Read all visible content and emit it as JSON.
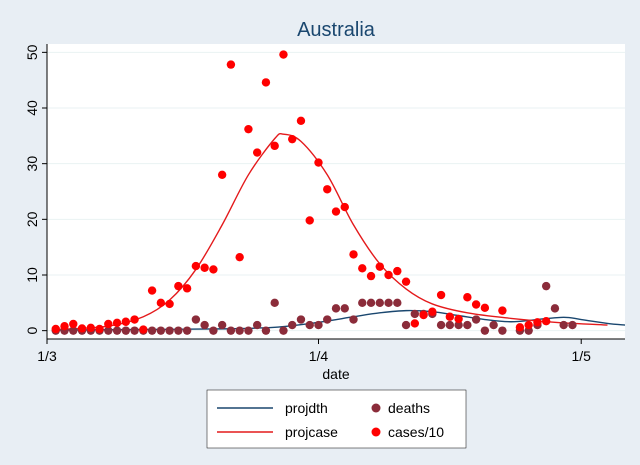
{
  "chart_data": {
    "type": "scatter",
    "title": "Australia",
    "xlabel": "date",
    "ylabel": "",
    "x_type": "date",
    "xlim": [
      "2020-03-01",
      "2020-05-06"
    ],
    "xticks": [
      {
        "value": "2020-03-01",
        "label": "1/3"
      },
      {
        "value": "2020-04-01",
        "label": "1/4"
      },
      {
        "value": "2020-05-01",
        "label": "1/5"
      }
    ],
    "ylim": [
      -1.5,
      51.5
    ],
    "yticks": [
      0,
      10,
      20,
      30,
      40,
      50
    ],
    "grid": "horizontal",
    "legend_position": "bottom",
    "series": [
      {
        "name": "projdth",
        "kind": "line",
        "color": "#1a476f",
        "points": [
          [
            "2020-03-02",
            0.1
          ],
          [
            "2020-03-10",
            0.2
          ],
          [
            "2020-03-20",
            0.3
          ],
          [
            "2020-03-27",
            0.6
          ],
          [
            "2020-04-01",
            1.5
          ],
          [
            "2020-04-05",
            2.5
          ],
          [
            "2020-04-08",
            3.2
          ],
          [
            "2020-04-11",
            3.6
          ],
          [
            "2020-04-14",
            3.4
          ],
          [
            "2020-04-17",
            2.7
          ],
          [
            "2020-04-20",
            2.0
          ],
          [
            "2020-04-23",
            1.6
          ],
          [
            "2020-04-26",
            2.0
          ],
          [
            "2020-04-29",
            2.4
          ],
          [
            "2020-05-01",
            2.0
          ],
          [
            "2020-05-04",
            1.3
          ],
          [
            "2020-05-06",
            1.0
          ]
        ]
      },
      {
        "name": "projcase",
        "kind": "line",
        "color": "#e41a1c",
        "points": [
          [
            "2020-03-02",
            0.2
          ],
          [
            "2020-03-08",
            0.8
          ],
          [
            "2020-03-12",
            2.5
          ],
          [
            "2020-03-15",
            5.5
          ],
          [
            "2020-03-18",
            11.0
          ],
          [
            "2020-03-21",
            19.0
          ],
          [
            "2020-03-24",
            28.0
          ],
          [
            "2020-03-27",
            34.5
          ],
          [
            "2020-03-28",
            35.3
          ],
          [
            "2020-03-30",
            34.0
          ],
          [
            "2020-04-02",
            28.0
          ],
          [
            "2020-04-05",
            19.0
          ],
          [
            "2020-04-08",
            12.0
          ],
          [
            "2020-04-11",
            7.5
          ],
          [
            "2020-04-14",
            4.8
          ],
          [
            "2020-04-18",
            3.2
          ],
          [
            "2020-04-23",
            2.2
          ],
          [
            "2020-04-28",
            1.5
          ],
          [
            "2020-05-04",
            1.0
          ]
        ]
      },
      {
        "name": "deaths",
        "kind": "scatter",
        "color": "#8b2c3a",
        "points": [
          [
            "2020-03-02",
            0
          ],
          [
            "2020-03-03",
            0
          ],
          [
            "2020-03-04",
            0
          ],
          [
            "2020-03-05",
            0
          ],
          [
            "2020-03-06",
            0
          ],
          [
            "2020-03-07",
            0
          ],
          [
            "2020-03-08",
            0
          ],
          [
            "2020-03-09",
            0
          ],
          [
            "2020-03-10",
            0
          ],
          [
            "2020-03-11",
            0
          ],
          [
            "2020-03-12",
            0
          ],
          [
            "2020-03-13",
            0
          ],
          [
            "2020-03-14",
            0
          ],
          [
            "2020-03-15",
            0
          ],
          [
            "2020-03-16",
            0
          ],
          [
            "2020-03-17",
            0
          ],
          [
            "2020-03-18",
            2
          ],
          [
            "2020-03-19",
            1
          ],
          [
            "2020-03-20",
            0
          ],
          [
            "2020-03-21",
            1
          ],
          [
            "2020-03-22",
            0
          ],
          [
            "2020-03-23",
            0
          ],
          [
            "2020-03-24",
            0
          ],
          [
            "2020-03-25",
            1
          ],
          [
            "2020-03-26",
            0
          ],
          [
            "2020-03-27",
            5
          ],
          [
            "2020-03-28",
            0
          ],
          [
            "2020-03-29",
            1
          ],
          [
            "2020-03-30",
            2
          ],
          [
            "2020-03-31",
            1
          ],
          [
            "2020-04-01",
            1
          ],
          [
            "2020-04-02",
            2
          ],
          [
            "2020-04-03",
            4
          ],
          [
            "2020-04-04",
            4
          ],
          [
            "2020-04-05",
            2
          ],
          [
            "2020-04-06",
            5
          ],
          [
            "2020-04-07",
            5
          ],
          [
            "2020-04-08",
            5
          ],
          [
            "2020-04-09",
            5
          ],
          [
            "2020-04-10",
            5
          ],
          [
            "2020-04-11",
            1
          ],
          [
            "2020-04-12",
            3
          ],
          [
            "2020-04-13",
            3
          ],
          [
            "2020-04-14",
            3
          ],
          [
            "2020-04-15",
            1
          ],
          [
            "2020-04-16",
            1
          ],
          [
            "2020-04-17",
            1
          ],
          [
            "2020-04-18",
            1
          ],
          [
            "2020-04-19",
            2
          ],
          [
            "2020-04-20",
            0
          ],
          [
            "2020-04-21",
            1
          ],
          [
            "2020-04-22",
            0
          ],
          [
            "2020-04-24",
            0
          ],
          [
            "2020-04-25",
            0
          ],
          [
            "2020-04-26",
            1
          ],
          [
            "2020-04-27",
            8
          ],
          [
            "2020-04-28",
            4
          ],
          [
            "2020-04-29",
            1
          ],
          [
            "2020-04-30",
            1
          ]
        ]
      },
      {
        "name": "cases/10",
        "kind": "scatter",
        "color": "#ff0000",
        "points": [
          [
            "2020-03-02",
            0.3
          ],
          [
            "2020-03-03",
            0.8
          ],
          [
            "2020-03-04",
            1.2
          ],
          [
            "2020-03-05",
            0.4
          ],
          [
            "2020-03-06",
            0.5
          ],
          [
            "2020-03-07",
            0.3
          ],
          [
            "2020-03-08",
            1.2
          ],
          [
            "2020-03-09",
            1.4
          ],
          [
            "2020-03-10",
            1.6
          ],
          [
            "2020-03-11",
            2.0
          ],
          [
            "2020-03-12",
            0.2
          ],
          [
            "2020-03-13",
            7.2
          ],
          [
            "2020-03-14",
            5.0
          ],
          [
            "2020-03-15",
            4.8
          ],
          [
            "2020-03-16",
            8.0
          ],
          [
            "2020-03-17",
            7.6
          ],
          [
            "2020-03-18",
            11.6
          ],
          [
            "2020-03-19",
            11.3
          ],
          [
            "2020-03-20",
            11.0
          ],
          [
            "2020-03-21",
            28.0
          ],
          [
            "2020-03-22",
            47.8
          ],
          [
            "2020-03-23",
            13.2
          ],
          [
            "2020-03-24",
            36.2
          ],
          [
            "2020-03-25",
            32.0
          ],
          [
            "2020-03-26",
            44.6
          ],
          [
            "2020-03-27",
            33.2
          ],
          [
            "2020-03-28",
            49.6
          ],
          [
            "2020-03-29",
            34.4
          ],
          [
            "2020-03-30",
            37.7
          ],
          [
            "2020-03-31",
            19.8
          ],
          [
            "2020-04-01",
            30.2
          ],
          [
            "2020-04-02",
            25.4
          ],
          [
            "2020-04-03",
            21.4
          ],
          [
            "2020-04-04",
            22.2
          ],
          [
            "2020-04-05",
            13.7
          ],
          [
            "2020-04-06",
            11.2
          ],
          [
            "2020-04-07",
            9.8
          ],
          [
            "2020-04-08",
            11.5
          ],
          [
            "2020-04-09",
            10.0
          ],
          [
            "2020-04-10",
            10.7
          ],
          [
            "2020-04-11",
            8.8
          ],
          [
            "2020-04-12",
            1.3
          ],
          [
            "2020-04-13",
            2.8
          ],
          [
            "2020-04-14",
            3.4
          ],
          [
            "2020-04-15",
            6.4
          ],
          [
            "2020-04-16",
            2.5
          ],
          [
            "2020-04-17",
            2.1
          ],
          [
            "2020-04-18",
            6.0
          ],
          [
            "2020-04-19",
            4.7
          ],
          [
            "2020-04-20",
            4.1
          ],
          [
            "2020-04-22",
            3.6
          ],
          [
            "2020-04-24",
            0.6
          ],
          [
            "2020-04-25",
            1.0
          ],
          [
            "2020-04-26",
            1.5
          ],
          [
            "2020-04-27",
            1.7
          ]
        ]
      }
    ]
  }
}
